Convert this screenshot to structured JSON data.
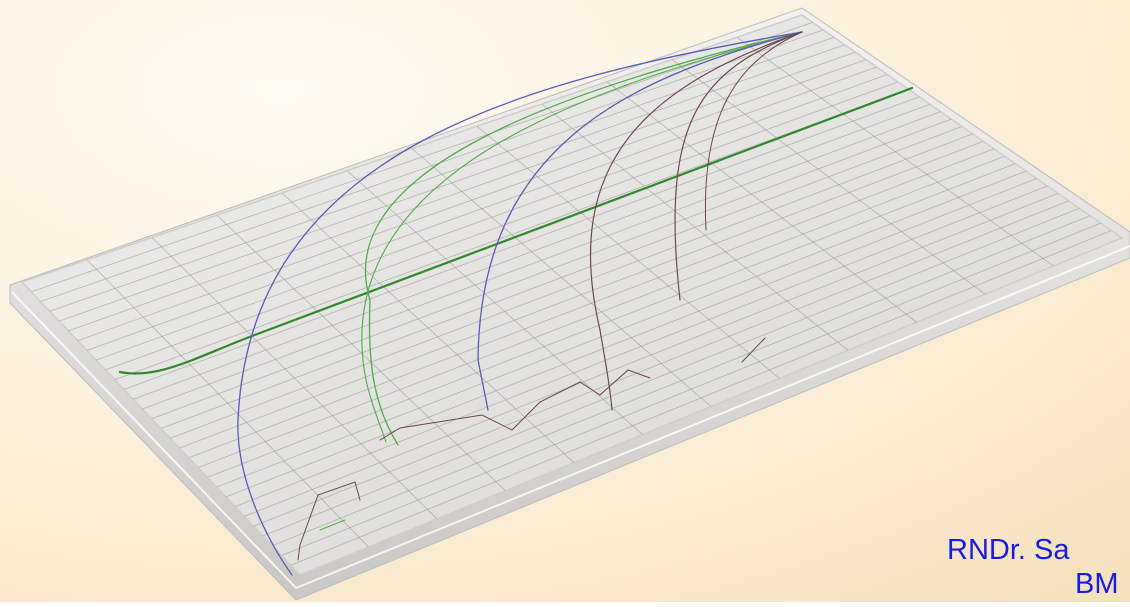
{
  "author": {
    "line1": "RNDr. Sa",
    "line2": "BM"
  },
  "colors": {
    "background_light": "#FDF7EA",
    "background_warm": "#F6E5C4",
    "author_text": "#1A1AE6",
    "curve_green_dark": "#2F8A2A",
    "curve_green": "#4FAE4A",
    "curve_blue": "#5A5ABE",
    "curve_brown": "#6E4A4A"
  },
  "illustration": {
    "description_icons": [
      "tilted-glass-board-icon",
      "curve-bundle-icon"
    ]
  }
}
